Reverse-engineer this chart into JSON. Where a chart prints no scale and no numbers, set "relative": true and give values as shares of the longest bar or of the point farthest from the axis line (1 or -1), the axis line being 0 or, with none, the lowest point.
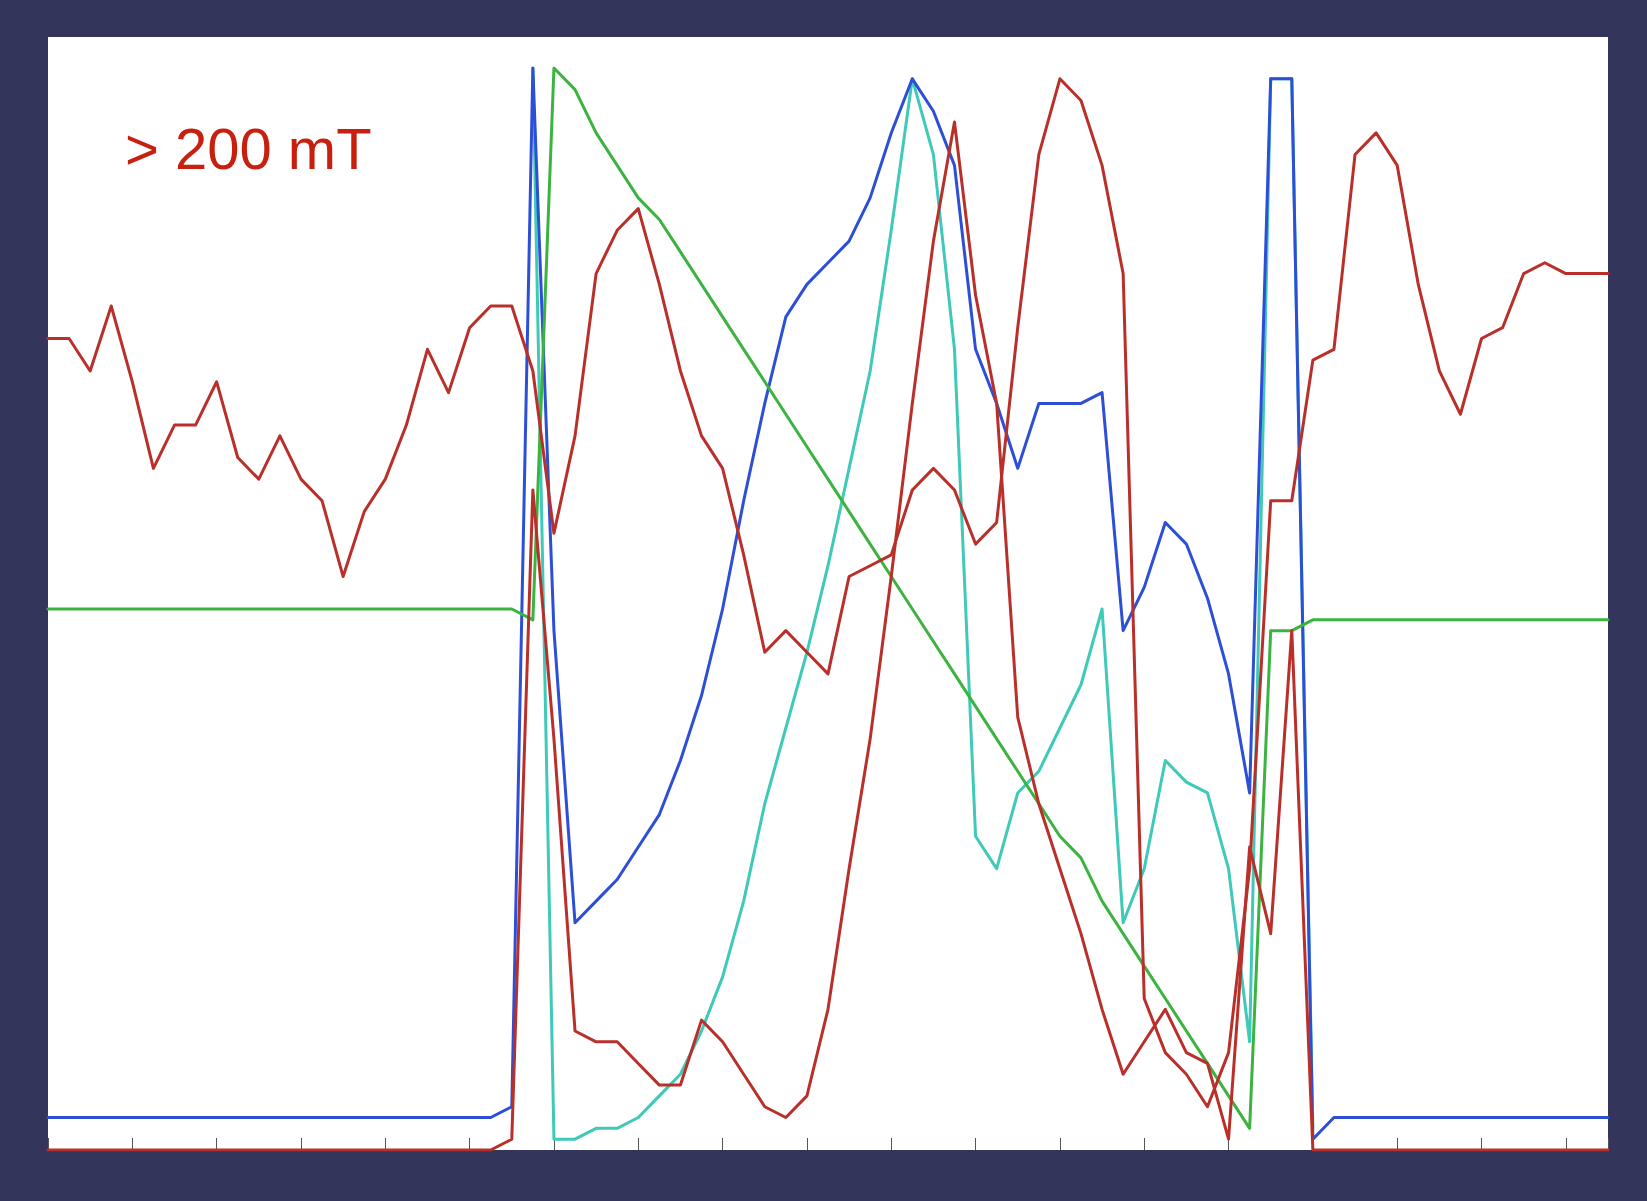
{
  "chart_data": {
    "type": "line",
    "relative": true,
    "grid": false,
    "marker": "none",
    "line_style": "solid",
    "annotations": [
      "> 200 mT"
    ],
    "categories": [
      null,
      null,
      null,
      null,
      null,
      null,
      null,
      null,
      null,
      null,
      null,
      null,
      null,
      null,
      null,
      null,
      null,
      null,
      null,
      null,
      null,
      null,
      null,
      null,
      null,
      null,
      null,
      null,
      null,
      null,
      null,
      null,
      null,
      null,
      null,
      null,
      null,
      null,
      null,
      null,
      null,
      null,
      null,
      null,
      null,
      null,
      null,
      null,
      null,
      null,
      null,
      null,
      null,
      null,
      null,
      null,
      null,
      null,
      null,
      null,
      null,
      null,
      null,
      null,
      null,
      null,
      null,
      null,
      null,
      null,
      null,
      null,
      null,
      null,
      null
    ],
    "series": [
      {
        "color": "#3fc9b8",
        "values": [
          null,
          null,
          null,
          null,
          null,
          null,
          null,
          null,
          null,
          null,
          null,
          null,
          null,
          null,
          null,
          null,
          null,
          null,
          null,
          null,
          null,
          null,
          null,
          1.0,
          0.01,
          0.01,
          0.02,
          0.02,
          0.03,
          0.05,
          0.07,
          0.11,
          0.16,
          0.23,
          0.32,
          0.39,
          0.46,
          0.54,
          0.63,
          0.72,
          0.85,
          0.99,
          0.92,
          0.74,
          0.29,
          0.26,
          0.33,
          0.35,
          0.39,
          0.43,
          0.5,
          0.21,
          0.26,
          0.36,
          0.34,
          0.33,
          0.26,
          0.1,
          0.99,
          0.99,
          0.02,
          null,
          null,
          null,
          null,
          null,
          null,
          null,
          null,
          null,
          null,
          null,
          null,
          null,
          null
        ]
      },
      {
        "color": "#2d4fd6",
        "values": [
          0.03,
          0.03,
          0.03,
          0.03,
          0.03,
          0.03,
          0.03,
          0.03,
          0.03,
          0.03,
          0.03,
          0.03,
          0.03,
          0.03,
          0.03,
          0.03,
          0.03,
          0.03,
          0.03,
          0.03,
          0.03,
          0.03,
          0.04,
          1.0,
          0.48,
          0.21,
          0.23,
          0.25,
          0.28,
          0.31,
          0.36,
          0.42,
          0.5,
          0.6,
          0.69,
          0.77,
          0.8,
          0.82,
          0.84,
          0.88,
          0.94,
          0.99,
          0.96,
          0.91,
          0.74,
          0.69,
          0.63,
          0.69,
          0.69,
          0.69,
          0.7,
          0.48,
          0.52,
          0.58,
          0.56,
          0.51,
          0.44,
          0.33,
          0.99,
          0.99,
          0.01,
          0.03,
          0.03,
          0.03,
          0.03,
          0.03,
          0.03,
          0.03,
          0.03,
          0.03,
          0.03,
          0.03,
          0.03,
          0.03,
          0.03
        ]
      },
      {
        "color": "#3cb340",
        "values": [
          0.5,
          0.5,
          0.5,
          0.5,
          0.5,
          0.5,
          0.5,
          0.5,
          0.5,
          0.5,
          0.5,
          0.5,
          0.5,
          0.5,
          0.5,
          0.5,
          0.5,
          0.5,
          0.5,
          0.5,
          0.5,
          0.5,
          0.5,
          0.49,
          1.0,
          0.98,
          0.94,
          0.91,
          0.88,
          0.86,
          0.83,
          0.8,
          0.77,
          0.74,
          0.71,
          0.68,
          0.65,
          0.62,
          0.59,
          0.56,
          0.53,
          0.5,
          0.47,
          0.44,
          0.41,
          0.38,
          0.35,
          0.32,
          0.29,
          0.27,
          0.23,
          0.2,
          0.17,
          0.14,
          0.11,
          0.08,
          0.05,
          0.02,
          0.48,
          0.48,
          0.49,
          0.49,
          0.49,
          0.49,
          0.49,
          0.49,
          0.49,
          0.49,
          0.49,
          0.49,
          0.49,
          0.49,
          0.49,
          0.49,
          0.49
        ]
      },
      {
        "color": "#b9302b",
        "values": [
          0.0,
          0.0,
          0.0,
          0.0,
          0.0,
          0.0,
          0.0,
          0.0,
          0.0,
          0.0,
          0.0,
          0.0,
          0.0,
          0.0,
          0.0,
          0.0,
          0.0,
          0.0,
          0.0,
          0.0,
          0.0,
          0.0,
          0.01,
          0.61,
          0.38,
          0.11,
          0.1,
          0.1,
          0.08,
          0.06,
          0.06,
          0.12,
          0.1,
          0.07,
          0.04,
          0.03,
          0.05,
          0.13,
          0.26,
          0.38,
          0.53,
          0.69,
          0.84,
          0.95,
          0.79,
          0.69,
          0.4,
          0.32,
          0.26,
          0.2,
          0.13,
          0.07,
          0.1,
          0.13,
          0.09,
          0.08,
          0.01,
          0.28,
          0.2,
          0.48,
          0.0,
          0.0,
          0.0,
          0.0,
          0.0,
          0.0,
          0.0,
          0.0,
          0.0,
          0.0,
          0.0,
          0.0,
          0.0,
          0.0,
          0.0
        ]
      },
      {
        "color": "#b9302b",
        "values": [
          0.75,
          0.75,
          0.72,
          0.78,
          0.71,
          0.63,
          0.67,
          0.67,
          0.71,
          0.64,
          0.62,
          0.66,
          0.62,
          0.6,
          0.53,
          0.59,
          0.62,
          0.67,
          0.74,
          0.7,
          0.76,
          0.78,
          0.78,
          0.72,
          0.57,
          0.66,
          0.81,
          0.85,
          0.87,
          0.8,
          0.72,
          0.66,
          0.63,
          0.55,
          0.46,
          0.48,
          0.46,
          0.44,
          0.53,
          0.54,
          0.55,
          0.61,
          0.63,
          0.61,
          0.56,
          0.58,
          0.76,
          0.92,
          0.99,
          0.97,
          0.91,
          0.81,
          0.14,
          0.09,
          0.07,
          0.04,
          0.09,
          0.26,
          0.6,
          0.6,
          0.73,
          0.74,
          0.92,
          0.94,
          0.91,
          0.8,
          0.72,
          0.68,
          0.75,
          0.76,
          0.81,
          0.82,
          0.81,
          0.81,
          0.81
        ]
      }
    ]
  }
}
